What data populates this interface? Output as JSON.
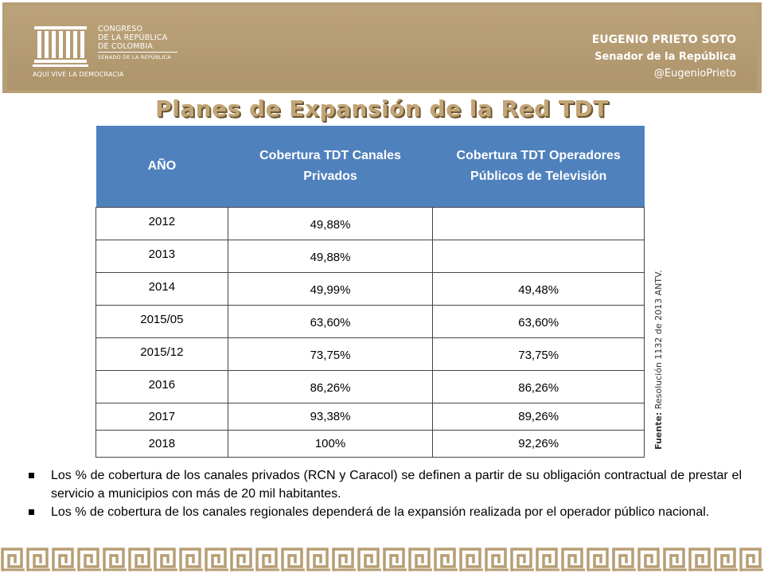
{
  "header": {
    "logo": {
      "lines": [
        "CONGRESO",
        "DE LA REPÚBLICA",
        "DE COLOMBIA"
      ],
      "sub": "SENADO DE LA REPÚBLICA",
      "motto": "AQUÍ VIVE LA DEMOCRACIA"
    },
    "senator": {
      "name": "EUGENIO PRIETO SOTO",
      "role": "Senador de la República",
      "handle": "@EugenioPrieto"
    }
  },
  "title": "Planes de Expansión de la  Red TDT",
  "table": {
    "headers": [
      "AÑO",
      "Cobertura TDT Canales Privados",
      "Cobertura TDT Operadores Públicos de Televisión"
    ],
    "rows": [
      [
        "2012",
        "49,88%",
        ""
      ],
      [
        "2013",
        "49,88%",
        ""
      ],
      [
        "2014",
        "49,99%",
        "49,48%"
      ],
      [
        "2015/05",
        "63,60%",
        "63,60%"
      ],
      [
        "2015/12",
        "73,75%",
        "73,75%"
      ],
      [
        "2016",
        "86,26%",
        "86,26%"
      ],
      [
        "2017",
        "93,38%",
        "89,26%"
      ],
      [
        "2018",
        "100%",
        "92,26%"
      ]
    ]
  },
  "source": {
    "label": "Fuente:",
    "text": " Resolución 1132 de 2013 ANTV."
  },
  "notes": [
    "Los % de cobertura de los canales privados (RCN y Caracol) se definen a partir de su obligación contractual de prestar el servicio a municipios con más de 20 mil habitantes.",
    "Los % de cobertura de los canales regionales dependerá de la expansión realizada por el operador público nacional."
  ],
  "colors": {
    "header_bg": "#b79e74",
    "table_header": "#4f81bd",
    "title": "#c2a576",
    "greek_key": "#b79e74"
  }
}
